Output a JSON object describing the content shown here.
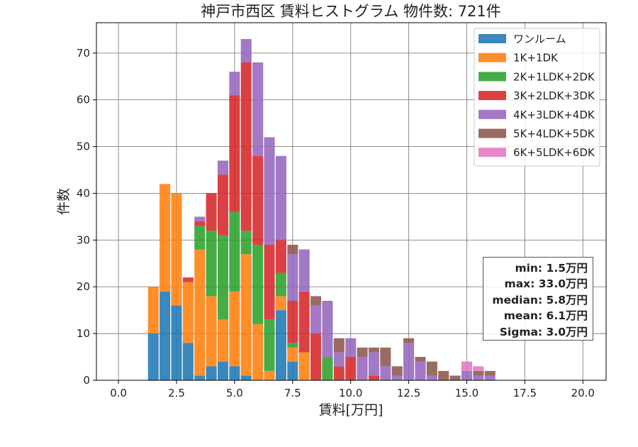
{
  "chart_data": {
    "type": "bar",
    "stacked": true,
    "title": "神戸市西区 賃料ヒストグラム 物件数: 721件",
    "xlabel": "賃料[万円]",
    "ylabel": "件数",
    "xlim": [
      -0.95,
      21.0
    ],
    "ylim": [
      0,
      76.5
    ],
    "xticks": [
      0.0,
      2.5,
      5.0,
      7.5,
      10.0,
      12.5,
      15.0,
      17.5,
      20.0
    ],
    "xtick_labels": [
      "0.0",
      "2.5",
      "5.0",
      "7.5",
      "10.0",
      "12.5",
      "15.0",
      "17.5",
      "20.0"
    ],
    "yticks": [
      0,
      10,
      20,
      30,
      40,
      50,
      60,
      70
    ],
    "ytick_labels": [
      "0",
      "10",
      "20",
      "30",
      "40",
      "50",
      "60",
      "70"
    ],
    "grid": true,
    "legend_position": "top-right",
    "bin_width": 0.5,
    "x": [
      1.5,
      2.0,
      2.5,
      3.0,
      3.5,
      4.0,
      4.5,
      5.0,
      5.5,
      6.0,
      6.5,
      7.0,
      7.5,
      8.0,
      8.5,
      9.0,
      9.5,
      10.0,
      10.5,
      11.0,
      11.5,
      12.0,
      12.5,
      13.0,
      13.5,
      14.0,
      14.5,
      15.0,
      15.5,
      16.0
    ],
    "series": [
      {
        "name": "ワンルーム",
        "color": "#1f77b4",
        "values": [
          10,
          19,
          16,
          8,
          1,
          3,
          4,
          3,
          1,
          0,
          0,
          15,
          4,
          0,
          0,
          0,
          0,
          0,
          0,
          0,
          0,
          0,
          0,
          0,
          0,
          0,
          0,
          0,
          0,
          0
        ]
      },
      {
        "name": "1K+1DK",
        "color": "#ff7f0e",
        "values": [
          10,
          23,
          24,
          13,
          27,
          15,
          9,
          16,
          26,
          12,
          2,
          3,
          3,
          6,
          0,
          0,
          0,
          0,
          0,
          0,
          0,
          0,
          0,
          0,
          0,
          0,
          0,
          0,
          0,
          0
        ]
      },
      {
        "name": "2K+1LDK+2DK",
        "color": "#2ca02c",
        "values": [
          0,
          0,
          0,
          0,
          5,
          14,
          18,
          17,
          5,
          17,
          11,
          5,
          1,
          0,
          0,
          5,
          0,
          0,
          0,
          0,
          0,
          0,
          0,
          0,
          0,
          0,
          0,
          0,
          0,
          0
        ]
      },
      {
        "name": "3K+2LDK+3DK",
        "color": "#d62728",
        "values": [
          0,
          0,
          0,
          1,
          1,
          8,
          13,
          25,
          36,
          19,
          16,
          7,
          9,
          13,
          10,
          0,
          3,
          5,
          0,
          1,
          0,
          0,
          0,
          0,
          0,
          0,
          0,
          0,
          0,
          0
        ]
      },
      {
        "name": "4K+3LDK+4DK",
        "color": "#9467bd",
        "values": [
          0,
          0,
          0,
          0,
          1,
          0,
          3,
          5,
          5,
          20,
          23,
          18,
          10,
          9,
          6,
          12,
          3,
          4,
          5,
          5,
          3,
          1,
          8,
          4,
          1,
          0,
          0,
          2,
          1,
          1
        ]
      },
      {
        "name": "5K+4LDK+5DK",
        "color": "#8c564b",
        "values": [
          0,
          0,
          0,
          0,
          0,
          0,
          0,
          0,
          0,
          0,
          0,
          0,
          2,
          0,
          2,
          0,
          3,
          0,
          2,
          1,
          4,
          2,
          1,
          1,
          3,
          2,
          1,
          0,
          1,
          1
        ]
      },
      {
        "name": "6K+5LDK+6DK",
        "color": "#e377c2",
        "values": [
          0,
          0,
          0,
          0,
          0,
          0,
          0,
          0,
          0,
          0,
          0,
          0,
          0,
          0,
          0,
          0,
          0,
          0,
          0,
          0,
          0,
          0,
          0,
          0,
          0,
          0,
          0,
          2,
          1,
          0
        ]
      }
    ],
    "stats": {
      "min": "min: 1.5万円",
      "max": "max: 33.0万円",
      "median": "median: 5.8万円",
      "mean": "mean: 6.1万円",
      "sigma": "Sigma: 3.0万円"
    }
  }
}
